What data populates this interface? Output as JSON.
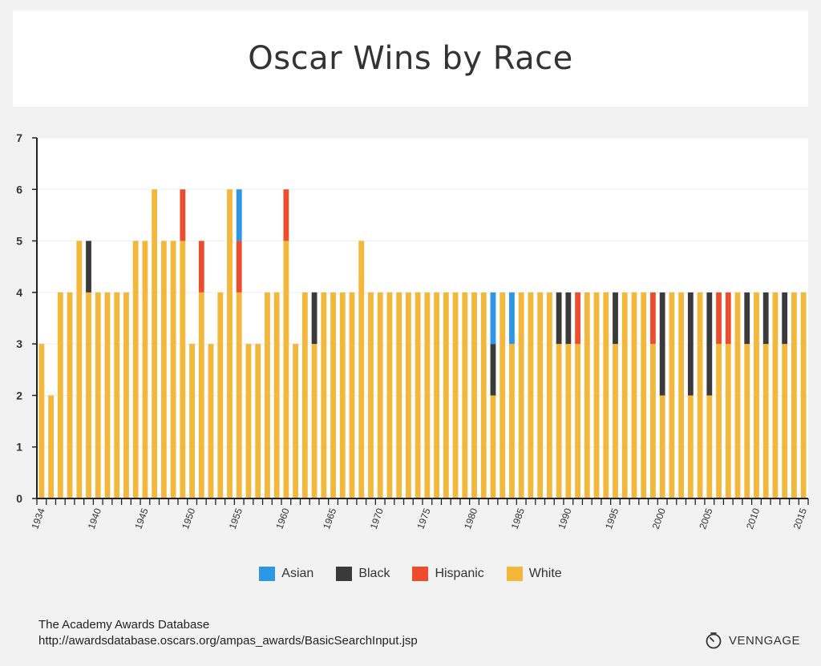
{
  "chart_data": {
    "type": "bar",
    "stacked": true,
    "title": "Oscar Wins by Race",
    "xlabel": "",
    "ylabel": "",
    "ylim": [
      0,
      7
    ],
    "yticks": [
      "0",
      "1",
      "2",
      "3",
      "4",
      "5",
      "6",
      "7"
    ],
    "categories": [
      "1934",
      "1935",
      "1936",
      "1937",
      "1938",
      "1939",
      "1940",
      "1941",
      "1942",
      "1943",
      "1944",
      "1945",
      "1946",
      "1947",
      "1948",
      "1949",
      "1950",
      "1951",
      "1952",
      "1953",
      "1954",
      "1955",
      "1956",
      "1957",
      "1958",
      "1959",
      "1960",
      "1961",
      "1962",
      "1963",
      "1964",
      "1965",
      "1966",
      "1967",
      "1968",
      "1969",
      "1970",
      "1971",
      "1972",
      "1973",
      "1974",
      "1975",
      "1976",
      "1977",
      "1978",
      "1979",
      "1980",
      "1981",
      "1982",
      "1983",
      "1984",
      "1985",
      "1986",
      "1987",
      "1988",
      "1989",
      "1990",
      "1991",
      "1992",
      "1993",
      "1994",
      "1995",
      "1996",
      "1997",
      "1998",
      "1999",
      "2000",
      "2001",
      "2002",
      "2003",
      "2004",
      "2005",
      "2006",
      "2007",
      "2008",
      "2009",
      "2010",
      "2011",
      "2012",
      "2013",
      "2014",
      "2015"
    ],
    "xtick_labels": [
      "1934",
      "1940",
      "1945",
      "1950",
      "1955",
      "1960",
      "1965",
      "1970",
      "1975",
      "1980",
      "1985",
      "1990",
      "1995",
      "2000",
      "2005",
      "2010",
      "2015"
    ],
    "series": [
      {
        "name": "White",
        "color": "#f3b73b",
        "values": [
          3,
          2,
          4,
          4,
          5,
          4,
          4,
          4,
          4,
          4,
          5,
          5,
          6,
          5,
          5,
          5,
          3,
          4,
          3,
          4,
          6,
          4,
          3,
          3,
          4,
          4,
          5,
          3,
          4,
          3,
          4,
          4,
          4,
          4,
          5,
          4,
          4,
          4,
          4,
          4,
          4,
          4,
          4,
          4,
          4,
          4,
          4,
          4,
          2,
          4,
          3,
          4,
          4,
          4,
          4,
          3,
          3,
          3,
          4,
          4,
          4,
          3,
          4,
          4,
          4,
          3,
          2,
          4,
          4,
          2,
          4,
          2,
          3,
          3,
          4,
          3,
          4,
          3,
          4,
          3,
          4,
          4
        ]
      },
      {
        "name": "Black",
        "color": "#3a3a3a",
        "values": [
          0,
          0,
          0,
          0,
          0,
          1,
          0,
          0,
          0,
          0,
          0,
          0,
          0,
          0,
          0,
          0,
          0,
          0,
          0,
          0,
          0,
          0,
          0,
          0,
          0,
          0,
          0,
          0,
          0,
          1,
          0,
          0,
          0,
          0,
          0,
          0,
          0,
          0,
          0,
          0,
          0,
          0,
          0,
          0,
          0,
          0,
          0,
          0,
          1,
          0,
          0,
          0,
          0,
          0,
          0,
          1,
          1,
          0,
          0,
          0,
          0,
          1,
          0,
          0,
          0,
          0,
          2,
          0,
          0,
          2,
          0,
          2,
          0,
          0,
          0,
          1,
          0,
          1,
          0,
          1,
          0,
          0
        ]
      },
      {
        "name": "Hispanic",
        "color": "#ee4d2d",
        "values": [
          0,
          0,
          0,
          0,
          0,
          0,
          0,
          0,
          0,
          0,
          0,
          0,
          0,
          0,
          0,
          1,
          0,
          1,
          0,
          0,
          0,
          1,
          0,
          0,
          0,
          0,
          1,
          0,
          0,
          0,
          0,
          0,
          0,
          0,
          0,
          0,
          0,
          0,
          0,
          0,
          0,
          0,
          0,
          0,
          0,
          0,
          0,
          0,
          0,
          0,
          0,
          0,
          0,
          0,
          0,
          0,
          0,
          1,
          0,
          0,
          0,
          0,
          0,
          0,
          0,
          1,
          0,
          0,
          0,
          0,
          0,
          0,
          1,
          1,
          0,
          0,
          0,
          0,
          0,
          0,
          0,
          0
        ]
      },
      {
        "name": "Asian",
        "color": "#2e96e6",
        "values": [
          0,
          0,
          0,
          0,
          0,
          0,
          0,
          0,
          0,
          0,
          0,
          0,
          0,
          0,
          0,
          0,
          0,
          0,
          0,
          0,
          0,
          1,
          0,
          0,
          0,
          0,
          0,
          0,
          0,
          0,
          0,
          0,
          0,
          0,
          0,
          0,
          0,
          0,
          0,
          0,
          0,
          0,
          0,
          0,
          0,
          0,
          0,
          0,
          1,
          0,
          1,
          0,
          0,
          0,
          0,
          0,
          0,
          0,
          0,
          0,
          0,
          0,
          0,
          0,
          0,
          0,
          0,
          0,
          0,
          0,
          0,
          0,
          0,
          0,
          0,
          0,
          0,
          0,
          0,
          0,
          0,
          0
        ]
      }
    ],
    "legend": [
      {
        "name": "Asian",
        "color": "#2e96e6"
      },
      {
        "name": "Black",
        "color": "#3a3a3a"
      },
      {
        "name": "Hispanic",
        "color": "#ee4d2d"
      },
      {
        "name": "White",
        "color": "#f3b73b"
      }
    ],
    "legend_position": "bottom",
    "grid": true
  },
  "footer": {
    "source_line1": "The Academy Awards Database",
    "source_line2": "http://awardsdatabase.oscars.org/ampas_awards/BasicSearchInput.jsp",
    "brand": "VENNGAGE"
  }
}
